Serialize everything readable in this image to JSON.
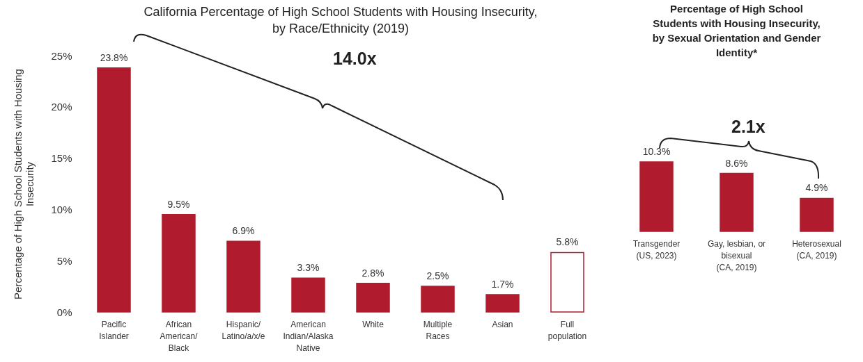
{
  "chart_data": [
    {
      "type": "bar",
      "title": "California Percentage of High School Students with Housing Insecurity,\nby Race/Ethnicity (2019)",
      "ylabel": "Percentage of High School Students with Housing\nInsecurity",
      "categories": [
        "Pacific\nIslander",
        "African\nAmerican/\nBlack",
        "Hispanic/\nLatino/a/x/e",
        "American\nIndian/Alaska\nNative",
        "White",
        "Multiple\nRaces",
        "Asian",
        "Full\npopulation"
      ],
      "values": [
        23.8,
        9.5,
        6.9,
        3.3,
        2.8,
        2.5,
        1.7,
        5.8
      ],
      "value_labels": [
        "23.8%",
        "9.5%",
        "6.9%",
        "3.3%",
        "2.8%",
        "2.5%",
        "1.7%",
        "5.8%"
      ],
      "color": "#b01c2e",
      "colors": [
        "#b01c2e",
        "#b01c2e",
        "#b01c2e",
        "#b01c2e",
        "#b01c2e",
        "#b01c2e",
        "#b01c2e",
        "#ffffff"
      ],
      "ylim": [
        0,
        25
      ],
      "yticks": [
        {
          "value": 0,
          "label": "0%"
        },
        {
          "value": 5,
          "label": "5%"
        },
        {
          "value": 10,
          "label": "10%"
        },
        {
          "value": 15,
          "label": "15%"
        },
        {
          "value": 20,
          "label": "20%"
        },
        {
          "value": 25,
          "label": "25%"
        }
      ],
      "grid": false,
      "annotations": [
        "14.0x"
      ]
    },
    {
      "type": "bar",
      "title": "Percentage of High School\nStudents with Housing Insecurity,\nby Sexual Orientation and Gender\nIdentity*",
      "categories": [
        "Transgender\n(US, 2023)",
        "Gay, lesbian, or\nbisexual\n(CA, 2019)",
        "Heterosexual\n(CA, 2019)"
      ],
      "values": [
        10.3,
        8.6,
        4.9
      ],
      "value_labels": [
        "10.3%",
        "8.6%",
        "4.9%"
      ],
      "color": "#b01c2e",
      "colors": [
        "#b01c2e",
        "#b01c2e",
        "#b01c2e"
      ],
      "tick_labels": "x",
      "grid": false,
      "annotations": [
        "2.1x"
      ]
    }
  ]
}
